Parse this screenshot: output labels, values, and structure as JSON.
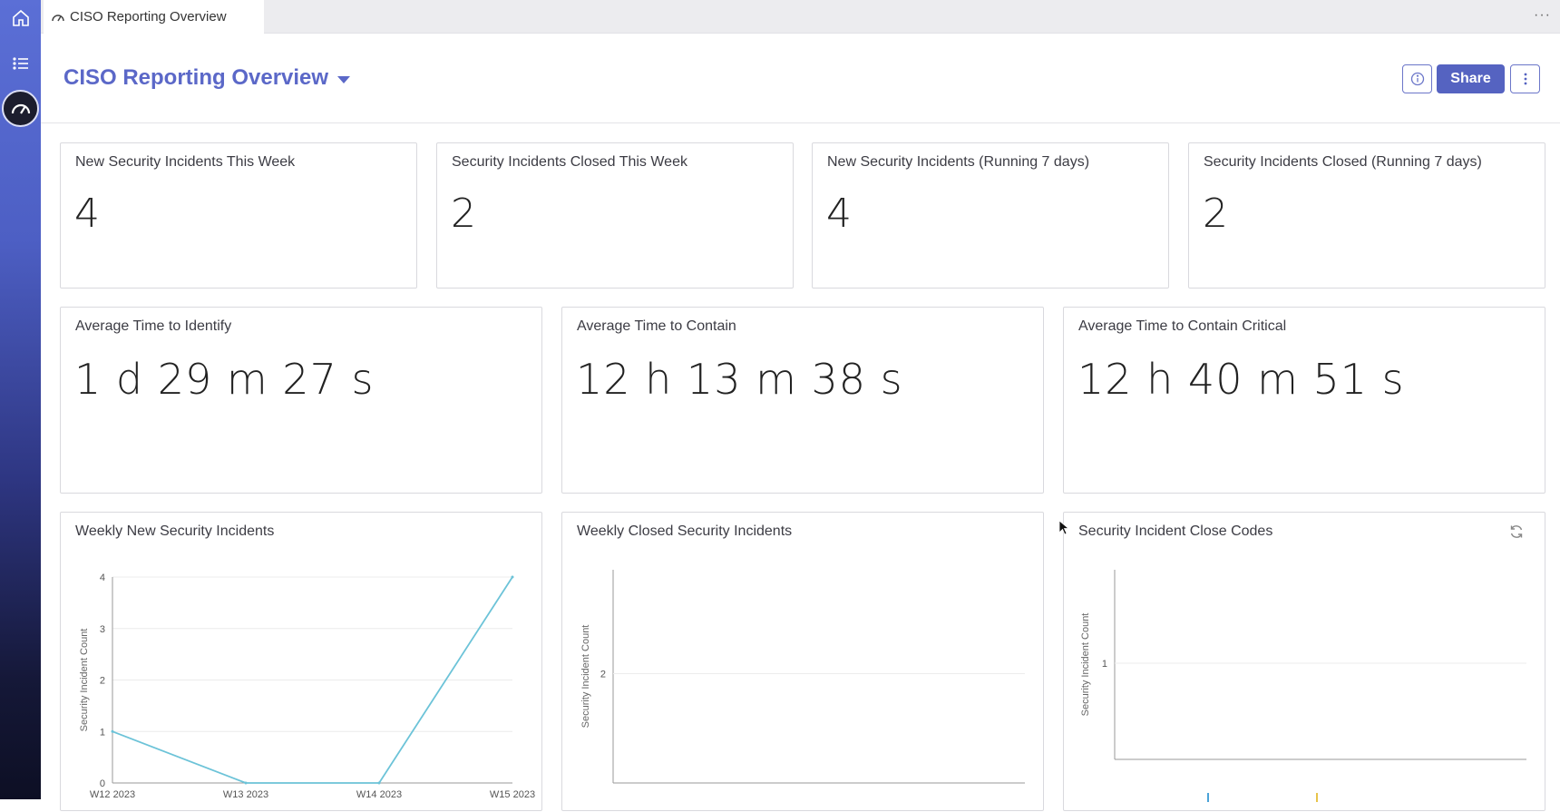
{
  "app": {
    "tab_title": "CISO Reporting Overview",
    "tab_menu": "···"
  },
  "header": {
    "title": "CISO Reporting Overview",
    "share_label": "Share"
  },
  "kpis": [
    {
      "title": "New Security Incidents This Week",
      "value": "4"
    },
    {
      "title": "Security Incidents Closed This Week",
      "value": "2"
    },
    {
      "title": "New Security Incidents (Running 7 days)",
      "value": "4"
    },
    {
      "title": "Security Incidents Closed (Running 7 days)",
      "value": "2"
    }
  ],
  "times": [
    {
      "title": "Average Time to Identify",
      "value": "1 d 29 m 27 s"
    },
    {
      "title": "Average Time to Contain",
      "value": "12 h 13 m 38 s"
    },
    {
      "title": "Average Time to Contain Critical",
      "value": "12 h 40 m 51 s"
    }
  ],
  "icons": [
    "home-icon",
    "list-icon",
    "dashboard-icon",
    "info-icon",
    "kebab-icon",
    "refresh-icon"
  ],
  "chart_data": [
    {
      "type": "line",
      "title": "Weekly New Security Incidents",
      "ylabel": "Security Incident Count",
      "categories": [
        "W12 2023",
        "W13 2023",
        "W14 2023",
        "W15 2023"
      ],
      "values": [
        1,
        0,
        0,
        4
      ],
      "ylim": [
        0,
        4
      ],
      "yticks": [
        0,
        1,
        2,
        3,
        4
      ],
      "color": "#6cc3d8"
    },
    {
      "type": "bar",
      "title": "Weekly Closed Security Incidents",
      "ylabel": "Security Incident Count",
      "yticks": [
        2
      ]
    },
    {
      "type": "bar",
      "title": "Security Incident Close Codes",
      "ylabel": "Security Incident Count",
      "yticks": [
        1
      ],
      "legend_colors": [
        "#4aa3d8",
        "#e8c44a"
      ]
    }
  ]
}
